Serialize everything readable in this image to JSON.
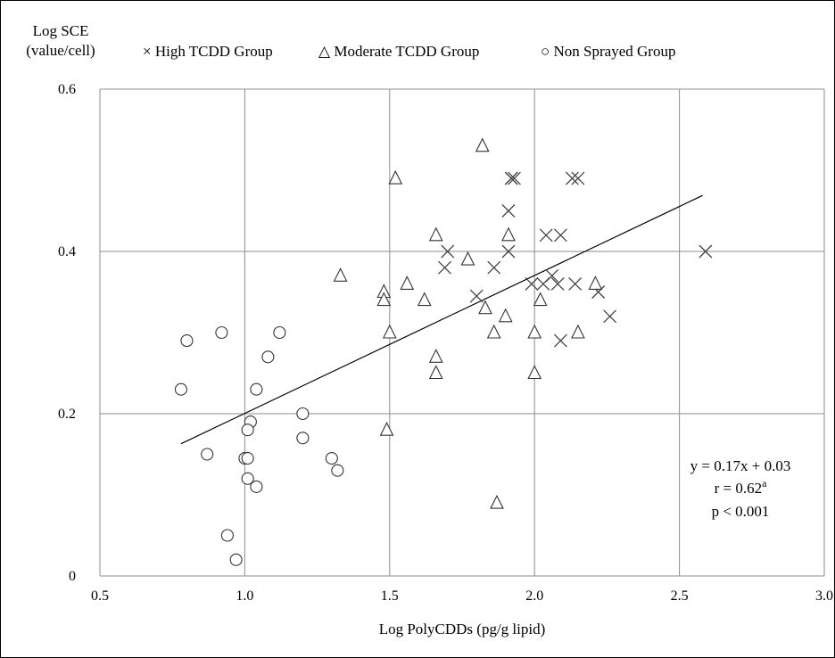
{
  "chart_data": {
    "type": "scatter",
    "title": "",
    "xlabel": "Log PolyCDDs (pg/g lipid)",
    "ylabel_line1": "Log SCE",
    "ylabel_line2": "(value/cell)",
    "xlim": [
      0.5,
      3.0
    ],
    "ylim": [
      0,
      0.6
    ],
    "x_ticks": [
      "0.5",
      "1.0",
      "1.5",
      "2.0",
      "2.5",
      "3.0"
    ],
    "y_ticks": [
      "0",
      "0.2",
      "0.4",
      "0.6"
    ],
    "grid": true,
    "legend_position": "top",
    "series": [
      {
        "name": "High TCDD Group",
        "marker": "x",
        "legend_glyph": "×",
        "points": [
          [
            1.92,
            0.49
          ],
          [
            1.93,
            0.49
          ],
          [
            1.92,
            0.49
          ],
          [
            2.13,
            0.49
          ],
          [
            2.15,
            0.49
          ],
          [
            1.91,
            0.45
          ],
          [
            2.09,
            0.42
          ],
          [
            2.04,
            0.42
          ],
          [
            1.7,
            0.4
          ],
          [
            1.91,
            0.4
          ],
          [
            2.59,
            0.4
          ],
          [
            1.69,
            0.38
          ],
          [
            1.86,
            0.38
          ],
          [
            2.06,
            0.37
          ],
          [
            2.03,
            0.36
          ],
          [
            2.08,
            0.36
          ],
          [
            1.99,
            0.36
          ],
          [
            2.14,
            0.36
          ],
          [
            2.22,
            0.35
          ],
          [
            1.8,
            0.345
          ],
          [
            2.26,
            0.32
          ],
          [
            2.09,
            0.29
          ]
        ]
      },
      {
        "name": "Moderate TCDD Group",
        "marker": "triangle",
        "legend_glyph": "△",
        "points": [
          [
            1.82,
            0.53
          ],
          [
            1.52,
            0.49
          ],
          [
            1.66,
            0.42
          ],
          [
            1.91,
            0.42
          ],
          [
            1.77,
            0.39
          ],
          [
            1.33,
            0.37
          ],
          [
            1.56,
            0.36
          ],
          [
            1.48,
            0.35
          ],
          [
            2.21,
            0.36
          ],
          [
            1.48,
            0.34
          ],
          [
            1.62,
            0.34
          ],
          [
            2.02,
            0.34
          ],
          [
            1.83,
            0.33
          ],
          [
            1.9,
            0.32
          ],
          [
            1.5,
            0.3
          ],
          [
            1.86,
            0.3
          ],
          [
            2.0,
            0.3
          ],
          [
            2.15,
            0.3
          ],
          [
            1.66,
            0.27
          ],
          [
            1.66,
            0.25
          ],
          [
            2.0,
            0.25
          ],
          [
            1.49,
            0.18
          ],
          [
            1.87,
            0.09
          ]
        ]
      },
      {
        "name": "Non Sprayed  Group",
        "marker": "circle",
        "legend_glyph": "○",
        "points": [
          [
            0.8,
            0.29
          ],
          [
            0.92,
            0.3
          ],
          [
            1.12,
            0.3
          ],
          [
            1.08,
            0.27
          ],
          [
            0.78,
            0.23
          ],
          [
            1.04,
            0.23
          ],
          [
            1.2,
            0.2
          ],
          [
            1.02,
            0.19
          ],
          [
            1.01,
            0.18
          ],
          [
            1.2,
            0.17
          ],
          [
            0.87,
            0.15
          ],
          [
            1.0,
            0.145
          ],
          [
            1.01,
            0.145
          ],
          [
            1.3,
            0.145
          ],
          [
            1.32,
            0.13
          ],
          [
            1.01,
            0.12
          ],
          [
            1.04,
            0.11
          ],
          [
            0.94,
            0.05
          ],
          [
            0.97,
            0.02
          ]
        ]
      }
    ],
    "fit_line": {
      "x": [
        0.78,
        2.58
      ],
      "y": [
        0.163,
        0.469
      ]
    },
    "annotation": {
      "equation": "y = 0.17x + 0.03",
      "r_value": "r = 0.62",
      "r_superscript": "a",
      "p_value": "p < 0.001"
    }
  }
}
